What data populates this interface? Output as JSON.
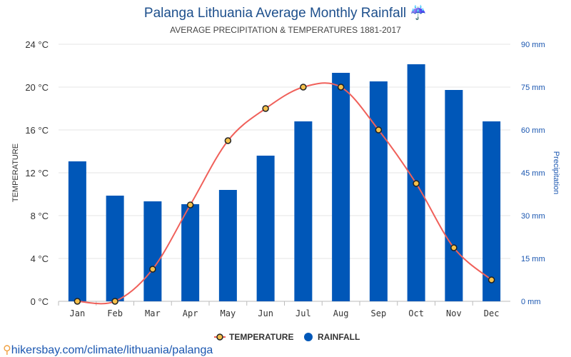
{
  "title": "Palanga Lithuania Average Monthly Rainfall ☔",
  "subtitle": "AVERAGE PRECIPITATION & TEMPERATURES 1881-2017",
  "footer_link": "hikersbay.com/climate/lithuania/palanga",
  "chart_data": {
    "type": "bar+line",
    "categories": [
      "Jan",
      "Feb",
      "Mar",
      "Apr",
      "May",
      "Jun",
      "Jul",
      "Aug",
      "Sep",
      "Oct",
      "Nov",
      "Dec"
    ],
    "series": [
      {
        "name": "TEMPERATURE",
        "type": "line",
        "axis": "left",
        "color": "#f0605a",
        "marker_color": "#f5c04a",
        "values": [
          0,
          0,
          3,
          9,
          15,
          18,
          20,
          20,
          16,
          11,
          5,
          2
        ]
      },
      {
        "name": "RAINFALL",
        "type": "bar",
        "axis": "right",
        "color": "#0057b8",
        "values": [
          49,
          37,
          35,
          34,
          39,
          51,
          63,
          80,
          77,
          83,
          74,
          63
        ]
      }
    ],
    "ylabel_left": "TEMPERATURE",
    "ylabel_right": "Precipitation",
    "ylim_left": [
      0,
      24
    ],
    "ylim_right": [
      0,
      90
    ],
    "yticks_left": [
      "0 °C",
      "4 °C",
      "8 °C",
      "12 °C",
      "16 °C",
      "20 °C",
      "24 °C"
    ],
    "yticks_right": [
      "0 mm",
      "15 mm",
      "30 mm",
      "45 mm",
      "60 mm",
      "75 mm",
      "90 mm"
    ],
    "grid": true,
    "legend_placement": "bottom"
  }
}
